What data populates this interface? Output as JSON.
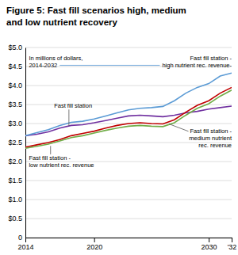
{
  "chart_data": {
    "type": "line",
    "title": "Figure 5: Fast fill scenarios high, medium\nand low nutrient recovery",
    "annotations": [
      "In millions of dollars,\n2014-2032",
      "Fast fill station -\nhigh nutrient rec. revenue-",
      "Fast fill station",
      "Fast fill station -\nlow nutrient rec. revenue",
      "Fast fill station -\nmedium nutrient\nrec. revenue"
    ],
    "x": [
      2014,
      2015,
      2016,
      2017,
      2018,
      2019,
      2020,
      2021,
      2022,
      2023,
      2024,
      2025,
      2026,
      2027,
      2028,
      2029,
      2030,
      2031,
      2032
    ],
    "series": [
      {
        "color": "#7030a0",
        "values": [
          2.68,
          2.72,
          2.78,
          2.88,
          2.95,
          2.97,
          3.02,
          3.08,
          3.14,
          3.2,
          3.22,
          3.2,
          3.18,
          3.22,
          3.28,
          3.32,
          3.38,
          3.42,
          3.46
        ]
      },
      {
        "color": "#5b9bd5",
        "values": [
          2.68,
          2.76,
          2.84,
          2.95,
          3.03,
          3.06,
          3.12,
          3.2,
          3.28,
          3.36,
          3.4,
          3.42,
          3.45,
          3.6,
          3.8,
          3.95,
          4.05,
          4.25,
          4.33
        ]
      },
      {
        "color": "#c00000",
        "values": [
          2.38,
          2.44,
          2.5,
          2.58,
          2.68,
          2.74,
          2.8,
          2.88,
          2.95,
          3.0,
          3.02,
          3.0,
          2.99,
          3.1,
          3.3,
          3.48,
          3.6,
          3.8,
          3.95
        ]
      },
      {
        "color": "#70ad47",
        "values": [
          2.35,
          2.4,
          2.46,
          2.54,
          2.63,
          2.68,
          2.75,
          2.82,
          2.88,
          2.93,
          2.95,
          2.93,
          2.92,
          3.02,
          3.22,
          3.4,
          3.52,
          3.72,
          3.88
        ]
      }
    ],
    "xlim": [
      2014,
      2032
    ],
    "xticks": [
      2014,
      2020,
      2030,
      {
        "value": 2032,
        "label": "'32"
      }
    ],
    "ylim": [
      0,
      5.0
    ],
    "yticks": [
      0,
      {
        "value": 0.5,
        "label": "$0.5"
      },
      {
        "value": 1.0,
        "label": "$1.0"
      },
      {
        "value": 1.5,
        "label": "$1.5"
      },
      {
        "value": 2.0,
        "label": "$2.0"
      },
      {
        "value": 2.5,
        "label": "$2.5"
      },
      {
        "value": 3.0,
        "label": "$3.0"
      },
      {
        "value": 3.5,
        "label": "$3.5"
      },
      {
        "value": 4.0,
        "label": "$4.0"
      },
      {
        "value": 4.5,
        "label": "$4.5"
      },
      {
        "value": 5.0,
        "label": "$5.0"
      }
    ],
    "grid": true
  }
}
